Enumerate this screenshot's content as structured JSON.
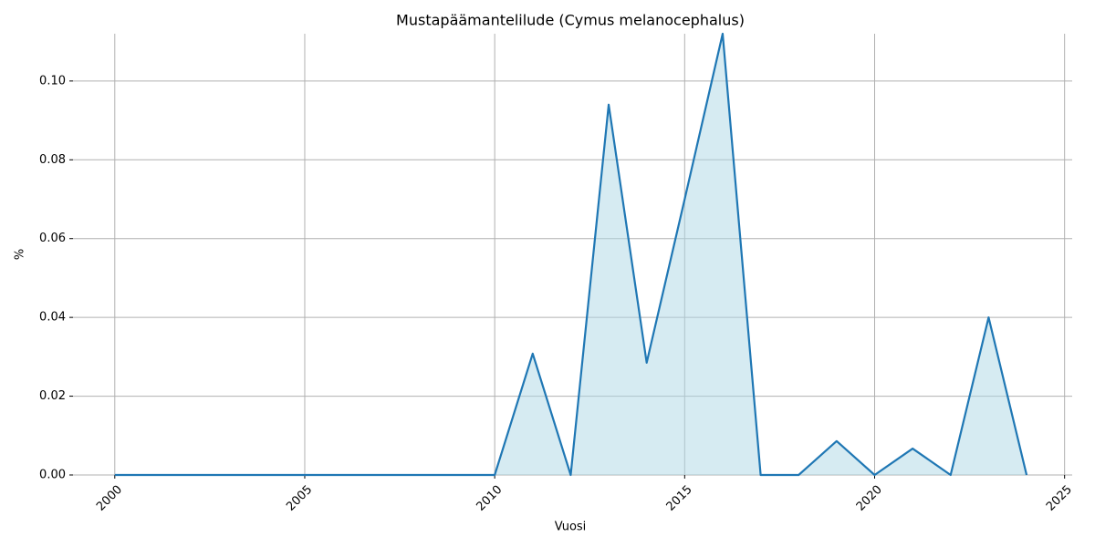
{
  "chart_data": {
    "type": "line",
    "title": "Mustapäämantelilude (Cymus melanocephalus)",
    "x_label": "Vuosi",
    "y_label": "%",
    "x": [
      2000,
      2001,
      2002,
      2003,
      2004,
      2005,
      2006,
      2007,
      2008,
      2009,
      2010,
      2011,
      2012,
      2013,
      2014,
      2015,
      2016,
      2017,
      2018,
      2019,
      2020,
      2021,
      2022,
      2023,
      2024
    ],
    "series": [
      {
        "name": "Mustapäämantelilude",
        "color": "#1f77b4",
        "area_color": "#add8e6",
        "values": [
          0,
          0,
          0,
          0,
          0,
          0,
          0,
          0,
          0,
          0,
          0,
          0.0308,
          0,
          0.094,
          0.0285,
          0.07,
          0.112,
          0,
          0,
          0.0086,
          0,
          0.0067,
          0,
          0.04,
          0
        ]
      }
    ],
    "xlim": [
      1998.9,
      2025.2
    ],
    "ylim": [
      0,
      0.112
    ],
    "xticks": [
      2000,
      2005,
      2010,
      2015,
      2020,
      2025
    ],
    "yticks": [
      {
        "value": 0,
        "label": "0.00"
      },
      {
        "value": 0.02,
        "label": "0.02"
      },
      {
        "value": 0.04,
        "label": "0.04"
      },
      {
        "value": 0.06,
        "label": "0.06"
      },
      {
        "value": 0.08,
        "label": "0.08"
      },
      {
        "value": 0.1,
        "label": "0.10"
      }
    ],
    "grid": true
  }
}
